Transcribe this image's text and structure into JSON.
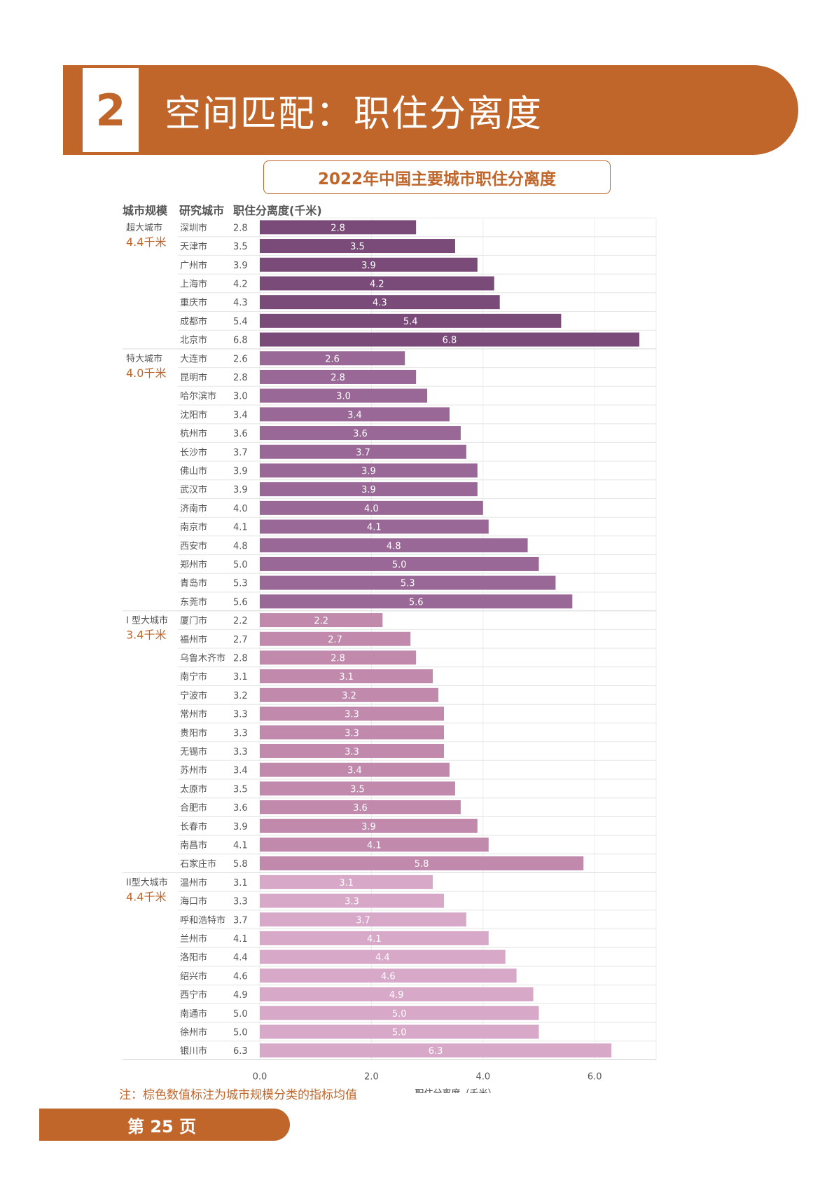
{
  "section": {
    "number": "2",
    "title": "空间匹配：职住分离度"
  },
  "chart_title": "2022年中国主要城市职住分离度",
  "headers": {
    "tier": "城市规模",
    "city": "研究城市",
    "value": "职住分离度(千米)"
  },
  "note": "注：棕色数值标注为城市规模分类的指标均值",
  "footer": "第 25 页",
  "colors": {
    "accent": "#c0662a",
    "tiers": [
      "#7a4a79",
      "#9a6897",
      "#c18aad",
      "#d8a8c8"
    ]
  },
  "chart_data": {
    "type": "bar",
    "orientation": "horizontal",
    "title": "2022年中国主要城市职住分离度",
    "xlabel": "职住分离度（千米）",
    "xlim": [
      0,
      7
    ],
    "xticks": [
      "0.0",
      "2.0",
      "4.0",
      "6.0"
    ],
    "xtick_values": [
      0,
      2,
      4,
      6
    ],
    "grid": true,
    "groups": [
      {
        "name": "超大城市",
        "avg": "4.4千米",
        "cities": [
          "深圳市",
          "天津市",
          "广州市",
          "上海市",
          "重庆市",
          "成都市",
          "北京市"
        ],
        "values": [
          2.8,
          3.5,
          3.9,
          4.2,
          4.3,
          5.4,
          6.8
        ],
        "labels": [
          "2.8",
          "3.5",
          "3.9",
          "4.2",
          "4.3",
          "5.4",
          "6.8"
        ]
      },
      {
        "name": "特大城市",
        "avg": "4.0千米",
        "cities": [
          "大连市",
          "昆明市",
          "哈尔滨市",
          "沈阳市",
          "杭州市",
          "长沙市",
          "佛山市",
          "武汉市",
          "济南市",
          "南京市",
          "西安市",
          "郑州市",
          "青岛市",
          "东莞市"
        ],
        "values": [
          2.6,
          2.8,
          3.0,
          3.4,
          3.6,
          3.7,
          3.9,
          3.9,
          4.0,
          4.1,
          4.8,
          5.0,
          5.3,
          5.6
        ],
        "labels": [
          "2.6",
          "2.8",
          "3.0",
          "3.4",
          "3.6",
          "3.7",
          "3.9",
          "3.9",
          "4.0",
          "4.1",
          "4.8",
          "5.0",
          "5.3",
          "5.6"
        ]
      },
      {
        "name": "I 型大城市",
        "avg": "3.4千米",
        "cities": [
          "厦门市",
          "福州市",
          "乌鲁木齐市",
          "南宁市",
          "宁波市",
          "常州市",
          "贵阳市",
          "无锡市",
          "苏州市",
          "太原市",
          "合肥市",
          "长春市",
          "南昌市",
          "石家庄市"
        ],
        "values": [
          2.2,
          2.7,
          2.8,
          3.1,
          3.2,
          3.3,
          3.3,
          3.3,
          3.4,
          3.5,
          3.6,
          3.9,
          4.1,
          5.8
        ],
        "labels": [
          "2.2",
          "2.7",
          "2.8",
          "3.1",
          "3.2",
          "3.3",
          "3.3",
          "3.3",
          "3.4",
          "3.5",
          "3.6",
          "3.9",
          "4.1",
          "5.8"
        ]
      },
      {
        "name": "II型大城市",
        "avg": "4.4千米",
        "cities": [
          "温州市",
          "海口市",
          "呼和浩特市",
          "兰州市",
          "洛阳市",
          "绍兴市",
          "西宁市",
          "南通市",
          "徐州市",
          "银川市"
        ],
        "values": [
          3.1,
          3.3,
          3.7,
          4.1,
          4.4,
          4.6,
          4.9,
          5.0,
          5.0,
          6.3
        ],
        "labels": [
          "3.1",
          "3.3",
          "3.7",
          "4.1",
          "4.4",
          "4.6",
          "4.9",
          "5.0",
          "5.0",
          "6.3"
        ]
      }
    ]
  }
}
